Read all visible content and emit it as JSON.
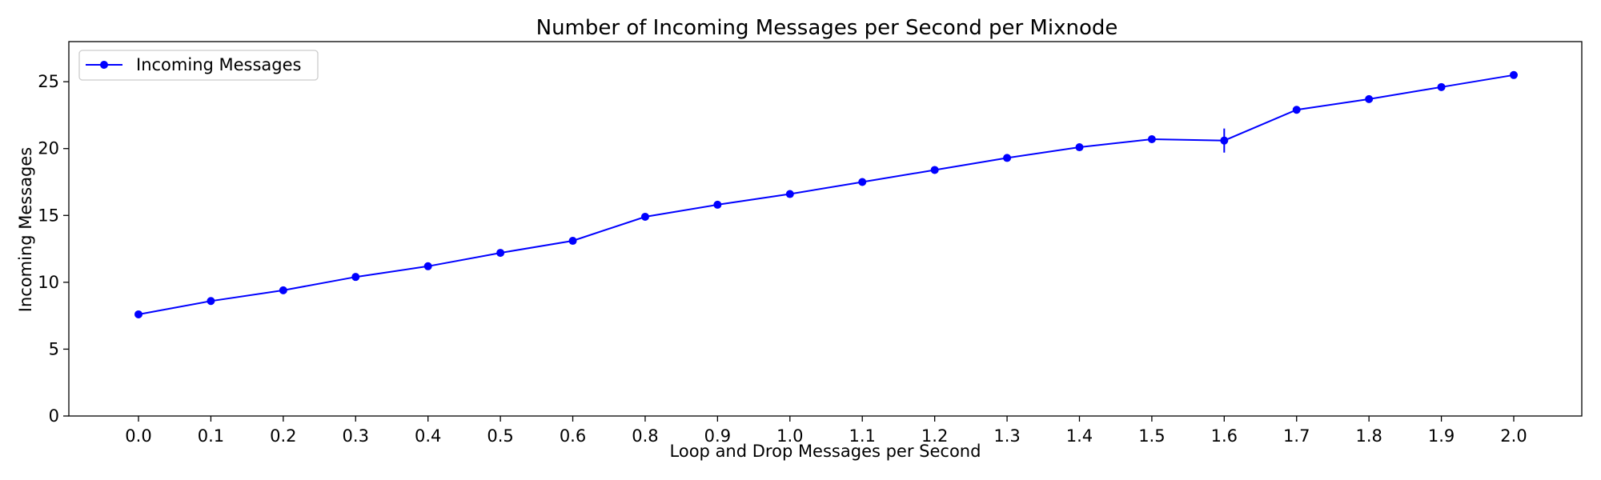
{
  "chart_data": {
    "type": "line",
    "title": "Number of Incoming Messages per Second per Mixnode",
    "xlabel": "Loop and Drop Messages per Second",
    "ylabel": "Incoming Messages",
    "categories": [
      "0.0",
      "0.1",
      "0.2",
      "0.3",
      "0.4",
      "0.5",
      "0.6",
      "0.8",
      "0.9",
      "1.0",
      "1.1",
      "1.2",
      "1.3",
      "1.4",
      "1.5",
      "1.6",
      "1.7",
      "1.8",
      "1.9",
      "2.0"
    ],
    "series": [
      {
        "name": "Incoming Messages",
        "color": "#0000ff",
        "values": [
          7.6,
          8.6,
          9.4,
          10.4,
          11.2,
          12.2,
          13.1,
          14.9,
          15.8,
          16.6,
          17.5,
          18.4,
          19.3,
          20.1,
          20.7,
          20.6,
          22.9,
          23.7,
          24.6,
          25.5
        ],
        "error": [
          0.1,
          0.1,
          0.1,
          0.1,
          0.1,
          0.1,
          0.1,
          0.1,
          0.1,
          0.1,
          0.1,
          0.1,
          0.1,
          0.1,
          0.1,
          0.9,
          0.1,
          0.1,
          0.1,
          0.1
        ]
      }
    ],
    "yticks": [
      "0",
      "5",
      "10",
      "15",
      "20",
      "25"
    ],
    "ylim": [
      0,
      28
    ],
    "grid": false,
    "legend": "top-left"
  }
}
